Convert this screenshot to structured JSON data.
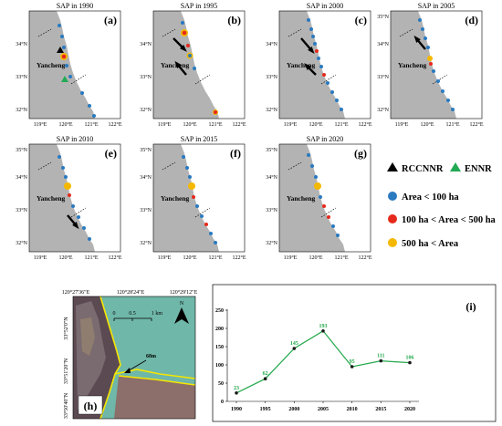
{
  "map_panels": [
    {
      "title": "SAP in 1990",
      "label": "(a)"
    },
    {
      "title": "SAP in 1995",
      "label": "(b)"
    },
    {
      "title": "SAP in 2000",
      "label": "(c)"
    },
    {
      "title": "SAP in 2005",
      "label": "(d)"
    },
    {
      "title": "SAP in 2010",
      "label": "(e)"
    },
    {
      "title": "SAP in 2015",
      "label": "(f)"
    },
    {
      "title": "SAP in 2020",
      "label": "(g)"
    }
  ],
  "map_common": {
    "city": "Yancheng",
    "lat_ticks": [
      "35°N",
      "34°N",
      "33°N",
      "32°N"
    ],
    "lon_ticks": [
      "119°E",
      "120°E",
      "121°E",
      "122°E"
    ]
  },
  "legend": {
    "rccnnr": "RCCNNR",
    "ennr": "ENNR",
    "small": "Area < 100 ha",
    "medium": "100 ha < Area < 500 ha",
    "large": "500 ha < Area",
    "colors": {
      "rccnnr": "#000000",
      "ennr": "#22aa55",
      "small": "#2a7ac0",
      "medium": "#e52a1c",
      "large": "#f5b800",
      "sea": "#ffffff",
      "land": "#b3b3b3"
    }
  },
  "panel_h": {
    "label": "(h)",
    "lon_ticks": [
      "120°27'36\"E",
      "120°28'24\"E",
      "120°29'12\"E"
    ],
    "lat_ticks": [
      "33°52'0\"N",
      "33°51'20\"N",
      "33°50'40\"N"
    ],
    "scale": [
      "0",
      "0.5",
      "1 km"
    ],
    "north": "N",
    "annotation": "68m"
  },
  "chart_data": {
    "type": "line",
    "label": "(i)",
    "categories": [
      "1990",
      "1995",
      "2000",
      "2005",
      "2010",
      "2015",
      "2020"
    ],
    "values": [
      23,
      62,
      145,
      193,
      95,
      111,
      106
    ],
    "ylim": [
      0,
      250
    ],
    "yticks": [
      "0",
      "50",
      "100",
      "150",
      "200",
      "250"
    ],
    "color": "#22a84a",
    "grid": false
  }
}
